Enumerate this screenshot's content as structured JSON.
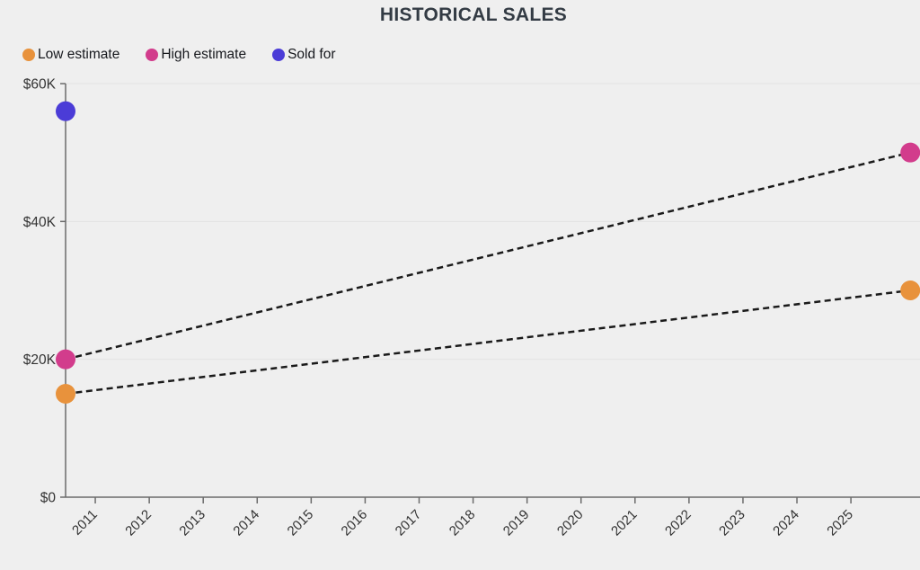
{
  "chart_data": {
    "type": "scatter",
    "title": "HISTORICAL SALES",
    "xlabel": "",
    "ylabel": "",
    "series": [
      {
        "name": "Low estimate",
        "color": "#e8923c",
        "line": "dashed",
        "points": [
          {
            "x": 2010.45,
            "y": 15000
          },
          {
            "x": 2026.1,
            "y": 30000
          }
        ]
      },
      {
        "name": "High estimate",
        "color": "#d23c8c",
        "line": "dashed",
        "points": [
          {
            "x": 2010.45,
            "y": 20000
          },
          {
            "x": 2026.1,
            "y": 50000
          }
        ]
      },
      {
        "name": "Sold for",
        "color": "#4b3cd7",
        "line": "none",
        "points": [
          {
            "x": 2010.45,
            "y": 56000
          }
        ]
      }
    ],
    "x_ticks": [
      2011,
      2012,
      2013,
      2014,
      2015,
      2016,
      2017,
      2018,
      2019,
      2020,
      2021,
      2022,
      2023,
      2024,
      2025
    ],
    "y_ticks": [
      {
        "value": 0,
        "label": "$0"
      },
      {
        "value": 20000,
        "label": "$20K"
      },
      {
        "value": 40000,
        "label": "$40K"
      },
      {
        "value": 60000,
        "label": "$60K"
      }
    ],
    "xlim": [
      2010.45,
      2026.28
    ],
    "ylim": [
      0,
      60000
    ],
    "grid": "horizontal",
    "legend_position": "top-left",
    "x_tick_label_rotation": -45
  },
  "colors": {
    "background": "#efefef",
    "gridline": "#e3e3e3",
    "axis": "#6b6b6b",
    "tick_text": "#333333",
    "title_text": "#333b44",
    "dashed_line": "#1a1a1a"
  }
}
